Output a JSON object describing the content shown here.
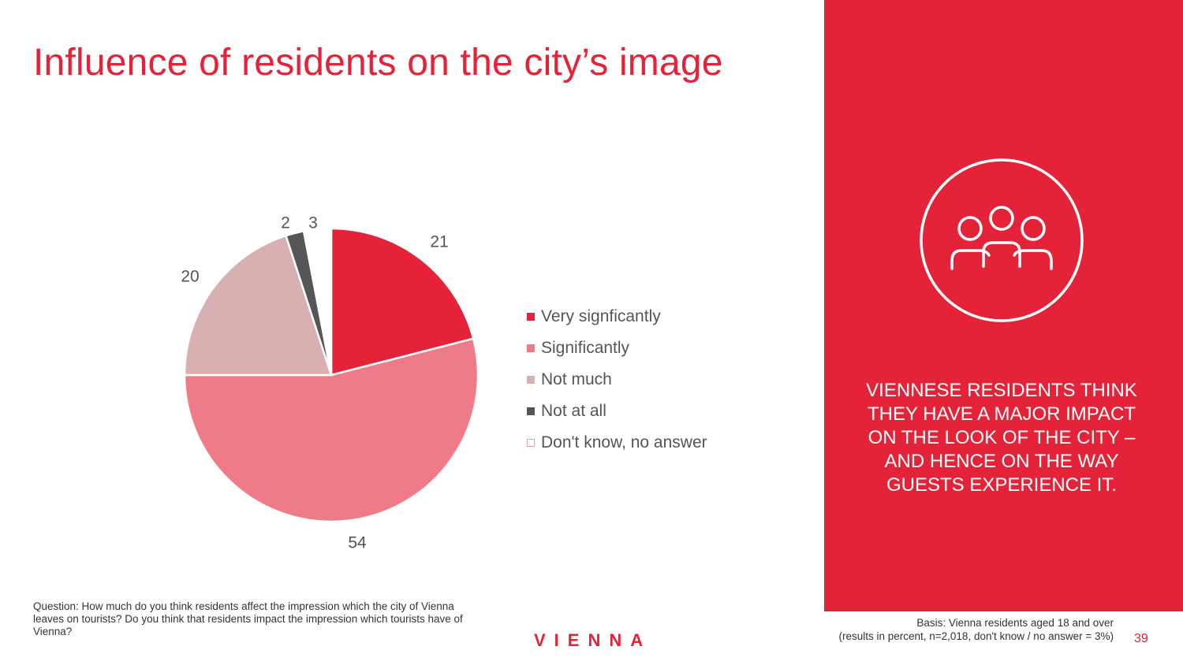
{
  "title": "Influence of residents on the city’s image",
  "chart_data": {
    "type": "pie",
    "categories": [
      "Very signficantly",
      "Significantly",
      "Not much",
      "Not at all",
      "Don't know, no answer"
    ],
    "values": [
      21,
      54,
      20,
      2,
      3
    ],
    "colors": [
      "#e42238",
      "#f07b88",
      "#d8b0b2",
      "#565656",
      "#ffffff"
    ],
    "legend_position": "right"
  },
  "side_panel": {
    "icon": "people-group-icon",
    "text": "VIENNESE RESIDENTS THINK THEY HAVE A MAJOR IMPACT ON THE LOOK OF THE CITY – AND HENCE ON THE WAY GUESTS EXPERIENCE IT."
  },
  "footer": {
    "question": "Question: How much do you think residents affect the impression which the city of Vienna leaves on tourists? Do you think that residents impact the impression which tourists have of Vienna?",
    "logo": "VIENNA",
    "basis_line1": "Basis: Vienna residents aged 18 and over",
    "basis_line2": "(results in percent, n=2,018, don't know / no answer = 3%)",
    "page_number": "39"
  }
}
